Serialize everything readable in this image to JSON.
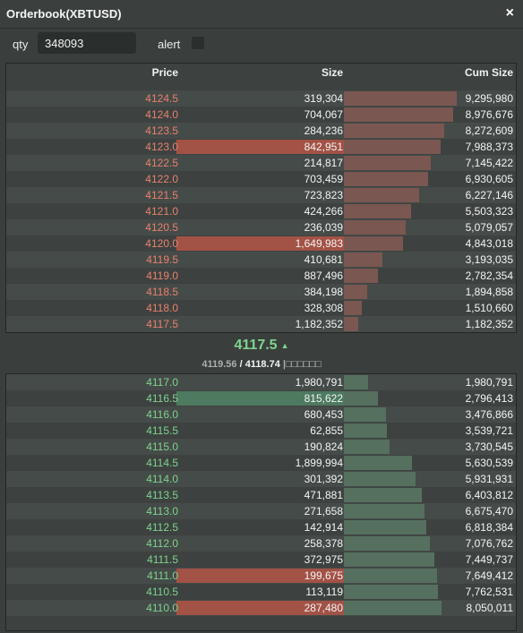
{
  "window": {
    "title": "Orderbook(XBTUSD)",
    "close_glyph": "×"
  },
  "controls": {
    "qty_label": "qty",
    "qty_value": "348093",
    "alert_label": "alert",
    "alert_checked": false
  },
  "headers": {
    "price": "Price",
    "size": "Size",
    "cum": "Cum Size"
  },
  "asks": [
    {
      "price": "4124.5",
      "size": "319,304",
      "cum": "9,295,980",
      "cum_n": 9295980,
      "size_n": 319304
    },
    {
      "price": "4124.0",
      "size": "704,067",
      "cum": "8,976,676",
      "cum_n": 8976676,
      "size_n": 704067
    },
    {
      "price": "4123.5",
      "size": "284,236",
      "cum": "8,272,609",
      "cum_n": 8272609,
      "size_n": 284236
    },
    {
      "price": "4123.0",
      "size": "842,951",
      "cum": "7,988,373",
      "cum_n": 7988373,
      "size_n": 842951,
      "highlight": true
    },
    {
      "price": "4122.5",
      "size": "214,817",
      "cum": "7,145,422",
      "cum_n": 7145422,
      "size_n": 214817
    },
    {
      "price": "4122.0",
      "size": "703,459",
      "cum": "6,930,605",
      "cum_n": 6930605,
      "size_n": 703459
    },
    {
      "price": "4121.5",
      "size": "723,823",
      "cum": "6,227,146",
      "cum_n": 6227146,
      "size_n": 723823
    },
    {
      "price": "4121.0",
      "size": "424,266",
      "cum": "5,503,323",
      "cum_n": 5503323,
      "size_n": 424266
    },
    {
      "price": "4120.5",
      "size": "236,039",
      "cum": "5,079,057",
      "cum_n": 5079057,
      "size_n": 236039
    },
    {
      "price": "4120.0",
      "size": "1,649,983",
      "cum": "4,843,018",
      "cum_n": 4843018,
      "size_n": 1649983,
      "highlight": true
    },
    {
      "price": "4119.5",
      "size": "410,681",
      "cum": "3,193,035",
      "cum_n": 3193035,
      "size_n": 410681
    },
    {
      "price": "4119.0",
      "size": "887,496",
      "cum": "2,782,354",
      "cum_n": 2782354,
      "size_n": 887496
    },
    {
      "price": "4118.5",
      "size": "384,198",
      "cum": "1,894,858",
      "cum_n": 1894858,
      "size_n": 384198
    },
    {
      "price": "4118.0",
      "size": "328,308",
      "cum": "1,510,660",
      "cum_n": 1510660,
      "size_n": 328308
    },
    {
      "price": "4117.5",
      "size": "1,182,352",
      "cum": "1,182,352",
      "cum_n": 1182352,
      "size_n": 1182352
    }
  ],
  "mid": {
    "price": "4117.5",
    "arrow": "▲",
    "mark": "4119.56",
    "separator": " / ",
    "index": "4118.74",
    "tail": " |□□□□□□"
  },
  "bids": [
    {
      "price": "4117.0",
      "size": "1,980,791",
      "cum": "1,980,791",
      "cum_n": 1980791,
      "size_n": 1980791
    },
    {
      "price": "4116.5",
      "size": "815,622",
      "cum": "2,796,413",
      "cum_n": 2796413,
      "size_n": 815622,
      "highlight": true
    },
    {
      "price": "4116.0",
      "size": "680,453",
      "cum": "3,476,866",
      "cum_n": 3476866,
      "size_n": 680453
    },
    {
      "price": "4115.5",
      "size": "62,855",
      "cum": "3,539,721",
      "cum_n": 3539721,
      "size_n": 62855
    },
    {
      "price": "4115.0",
      "size": "190,824",
      "cum": "3,730,545",
      "cum_n": 3730545,
      "size_n": 190824
    },
    {
      "price": "4114.5",
      "size": "1,899,994",
      "cum": "5,630,539",
      "cum_n": 5630539,
      "size_n": 1899994
    },
    {
      "price": "4114.0",
      "size": "301,392",
      "cum": "5,931,931",
      "cum_n": 5931931,
      "size_n": 301392
    },
    {
      "price": "4113.5",
      "size": "471,881",
      "cum": "6,403,812",
      "cum_n": 6403812,
      "size_n": 471881
    },
    {
      "price": "4113.0",
      "size": "271,658",
      "cum": "6,675,470",
      "cum_n": 6675470,
      "size_n": 271658
    },
    {
      "price": "4112.5",
      "size": "142,914",
      "cum": "6,818,384",
      "cum_n": 6818384,
      "size_n": 142914
    },
    {
      "price": "4112.0",
      "size": "258,378",
      "cum": "7,076,762",
      "cum_n": 7076762,
      "size_n": 258378
    },
    {
      "price": "4111.5",
      "size": "372,975",
      "cum": "7,449,737",
      "cum_n": 7449737,
      "size_n": 372975
    },
    {
      "price": "4111.0",
      "size": "199,675",
      "cum": "7,649,412",
      "cum_n": 7649412,
      "size_n": 199675,
      "highlight": true,
      "highlight_color": "ask"
    },
    {
      "price": "4110.5",
      "size": "113,119",
      "cum": "7,762,531",
      "cum_n": 7762531,
      "size_n": 113119
    },
    {
      "price": "4110.0",
      "size": "287,480",
      "cum": "8,050,011",
      "cum_n": 8050011,
      "size_n": 287480,
      "highlight": true,
      "highlight_color": "ask"
    }
  ],
  "colors": {
    "ask": "#e8816d",
    "bid": "#7fd38f",
    "ask_bar": "#7a5751",
    "bid_bar": "#55705f",
    "highlight_ask": "#a35246",
    "highlight_bid": "#4d7a60"
  }
}
